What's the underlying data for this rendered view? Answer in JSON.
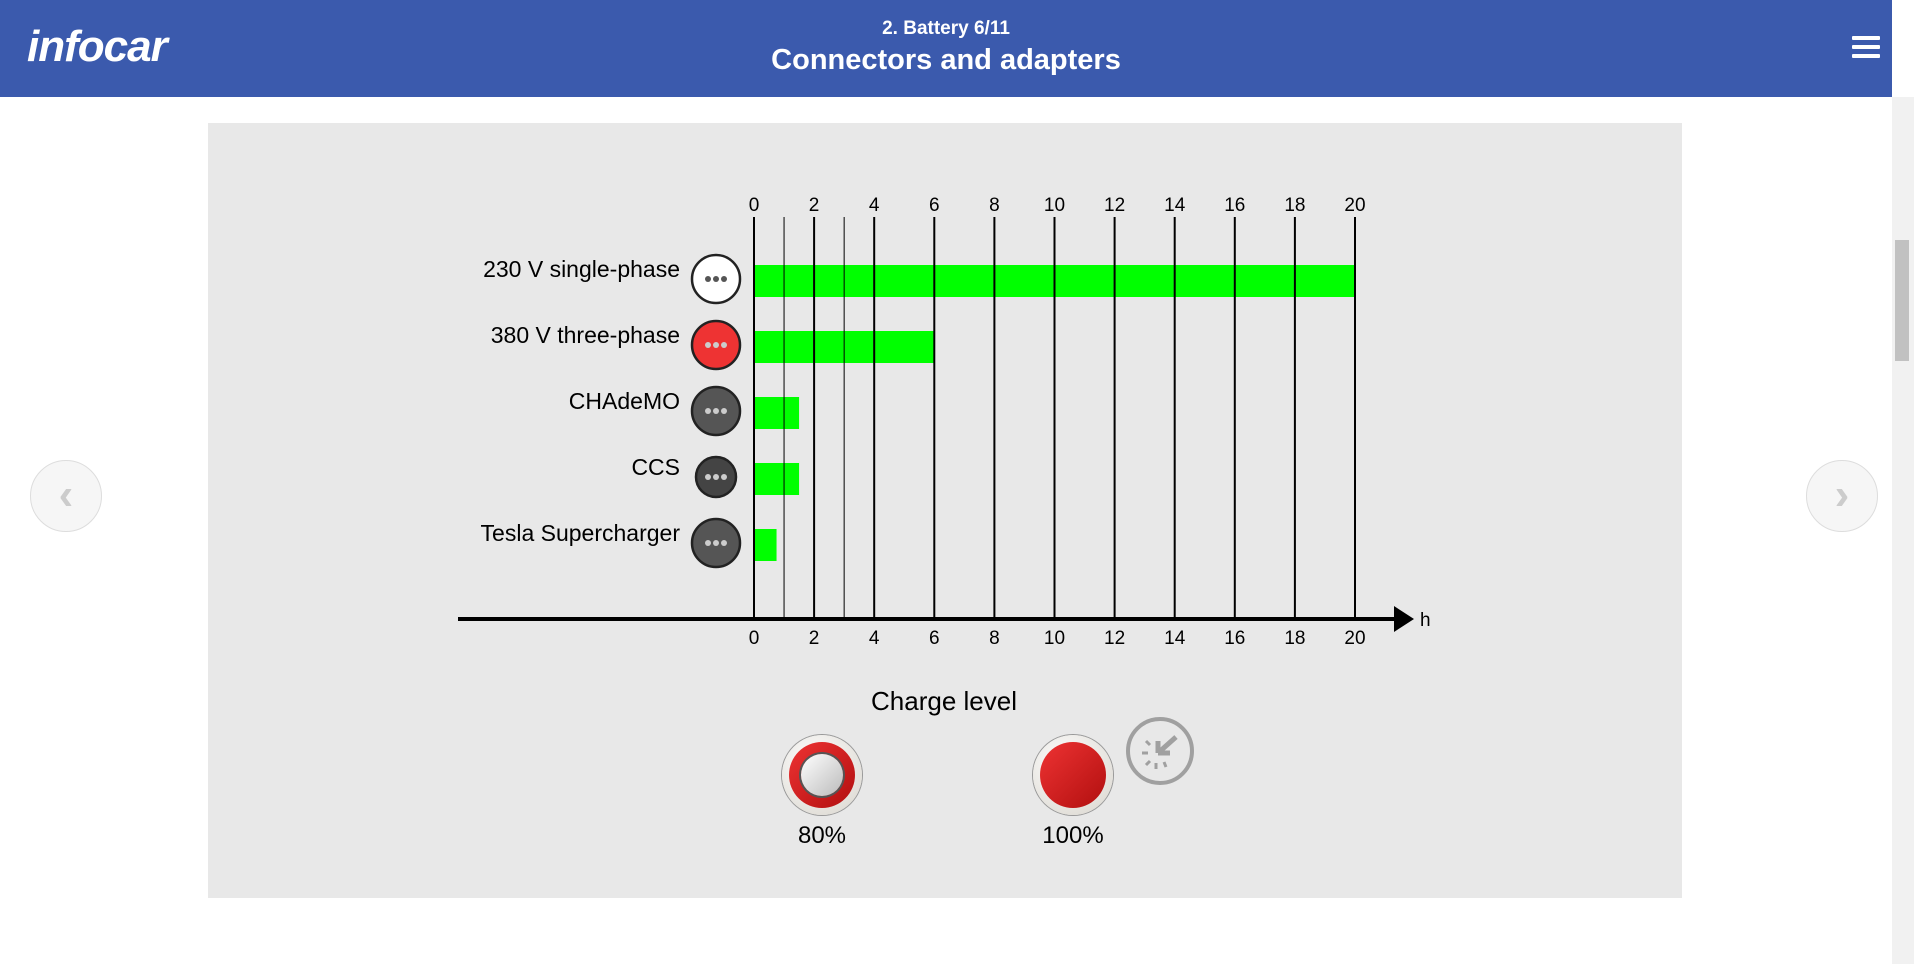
{
  "header": {
    "logo": "infocar",
    "subtitle": "2. Battery 6/11",
    "title": "Connectors and adapters"
  },
  "icons": {
    "menu": "hamburger-icon",
    "prev": "chevron-left-icon",
    "next": "chevron-right-icon",
    "tap": "tap-hint-icon"
  },
  "colors": {
    "header": "#3b5aad",
    "bar": "#00ff00",
    "button": "#d11a1a"
  },
  "chart_data": {
    "type": "bar",
    "orientation": "horizontal",
    "categories": [
      "230 V single-phase",
      "380 V three-phase",
      "CHAdeMO",
      "CCS",
      "Tesla Supercharger"
    ],
    "values": [
      20,
      6,
      1.5,
      1.5,
      0.75
    ],
    "xlabel": "h",
    "xlim": [
      0,
      20
    ],
    "ticks": [
      "0",
      "2",
      "4",
      "6",
      "8",
      "10",
      "12",
      "14",
      "16",
      "18",
      "20"
    ],
    "grid": true
  },
  "charge": {
    "label": "Charge level",
    "options": [
      {
        "label": "80%",
        "selected": false
      },
      {
        "label": "100%",
        "selected": true
      }
    ]
  }
}
